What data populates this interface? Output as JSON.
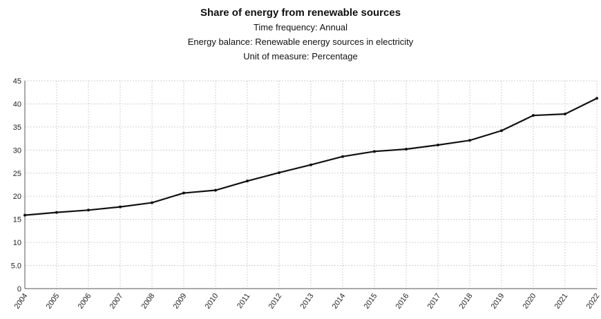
{
  "chart_data": {
    "type": "line",
    "title": "Share of energy from renewable sources",
    "subtitles": [
      "Time frequency: Annual",
      "Energy balance: Renewable energy sources in electricity",
      "Unit of measure: Percentage"
    ],
    "xlabel": "",
    "ylabel": "",
    "ylim": [
      0,
      45
    ],
    "yticks": [
      "0",
      "5.0",
      "10",
      "15",
      "20",
      "25",
      "30",
      "35",
      "40",
      "45"
    ],
    "grid": true,
    "x": [
      "2004",
      "2005",
      "2006",
      "2007",
      "2008",
      "2009",
      "2010",
      "2011",
      "2012",
      "2013",
      "2014",
      "2015",
      "2016",
      "2017",
      "2018",
      "2019",
      "2020",
      "2021",
      "2022"
    ],
    "values": [
      15.9,
      16.5,
      17.0,
      17.7,
      18.6,
      20.7,
      21.3,
      23.3,
      25.1,
      26.8,
      28.6,
      29.7,
      30.2,
      31.1,
      32.1,
      34.2,
      37.5,
      37.8,
      41.2
    ],
    "line_color": "#111111",
    "grid_color": "#cfcfcf"
  }
}
